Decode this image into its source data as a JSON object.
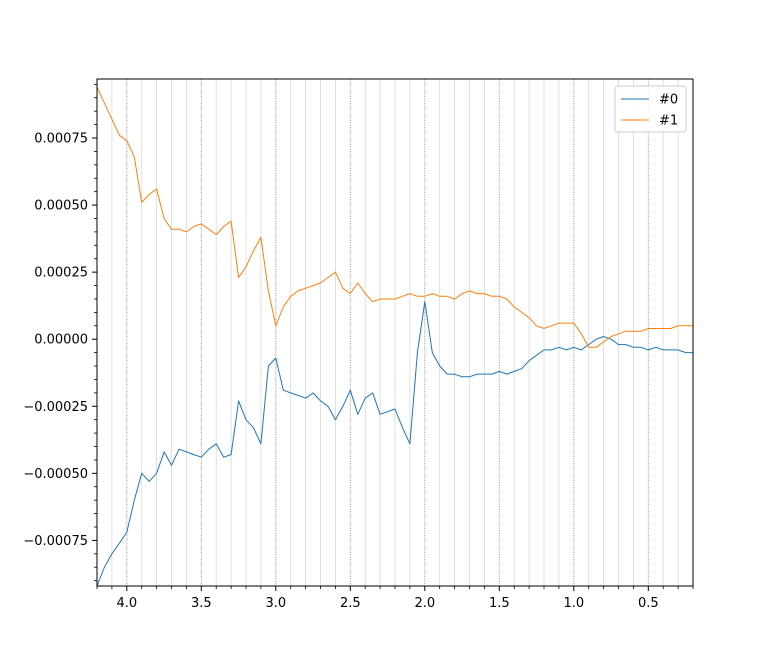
{
  "chart_data": {
    "type": "line",
    "title": "",
    "xlabel": "",
    "ylabel": "",
    "xlim": [
      4.2,
      0.2
    ],
    "x_inverted": true,
    "ylim": [
      -0.00092,
      0.00097
    ],
    "x_ticks": [
      4.0,
      3.5,
      3.0,
      2.5,
      2.0,
      1.5,
      1.0,
      0.5
    ],
    "x_tick_labels": [
      "4.0",
      "3.5",
      "3.0",
      "2.5",
      "2.0",
      "1.5",
      "1.0",
      "0.5"
    ],
    "y_ticks": [
      -0.00075,
      -0.0005,
      -0.00025,
      0.0,
      0.00025,
      0.0005,
      0.00075
    ],
    "y_tick_labels": [
      "−0.00075",
      "−0.00050",
      "−0.00025",
      "0.00000",
      "0.00025",
      "0.00050",
      "0.00075"
    ],
    "vertical_gridlines_major": [
      4.0,
      3.5,
      3.0,
      2.5,
      2.0,
      1.5,
      1.0,
      0.5
    ],
    "vertical_gridlines_minor_step": 0.1,
    "legend": {
      "placement": "top-right",
      "entries": [
        "#0",
        "#1"
      ]
    },
    "series": [
      {
        "name": "#0",
        "color": "#1f77b4",
        "x": [
          4.2,
          4.15,
          4.1,
          4.05,
          4.0,
          3.95,
          3.9,
          3.85,
          3.8,
          3.75,
          3.7,
          3.65,
          3.6,
          3.55,
          3.5,
          3.45,
          3.4,
          3.35,
          3.3,
          3.25,
          3.2,
          3.15,
          3.1,
          3.05,
          3.0,
          2.95,
          2.9,
          2.85,
          2.8,
          2.75,
          2.7,
          2.65,
          2.6,
          2.55,
          2.5,
          2.45,
          2.4,
          2.35,
          2.3,
          2.25,
          2.2,
          2.15,
          2.1,
          2.05,
          2.0,
          1.95,
          1.9,
          1.85,
          1.8,
          1.75,
          1.7,
          1.65,
          1.6,
          1.55,
          1.5,
          1.45,
          1.4,
          1.35,
          1.3,
          1.25,
          1.2,
          1.15,
          1.1,
          1.05,
          1.0,
          0.95,
          0.9,
          0.85,
          0.8,
          0.75,
          0.7,
          0.65,
          0.6,
          0.55,
          0.5,
          0.45,
          0.4,
          0.35,
          0.3,
          0.25,
          0.2
        ],
        "y": [
          -0.00092,
          -0.00085,
          -0.0008,
          -0.00076,
          -0.00072,
          -0.0006,
          -0.0005,
          -0.00053,
          -0.0005,
          -0.00042,
          -0.00047,
          -0.00041,
          -0.00042,
          -0.00043,
          -0.00044,
          -0.00041,
          -0.00039,
          -0.00044,
          -0.00043,
          -0.00023,
          -0.0003,
          -0.00033,
          -0.00039,
          -0.0001,
          -7e-05,
          -0.00019,
          -0.0002,
          -0.00021,
          -0.00022,
          -0.0002,
          -0.00023,
          -0.00025,
          -0.0003,
          -0.00025,
          -0.00019,
          -0.00028,
          -0.00022,
          -0.0002,
          -0.00028,
          -0.00027,
          -0.00026,
          -0.00033,
          -0.00039,
          -5e-05,
          0.00014,
          -5e-05,
          -0.0001,
          -0.00013,
          -0.00013,
          -0.00014,
          -0.00014,
          -0.00013,
          -0.00013,
          -0.00013,
          -0.00012,
          -0.00013,
          -0.00012,
          -0.00011,
          -8e-05,
          -6e-05,
          -4e-05,
          -4e-05,
          -3e-05,
          -4e-05,
          -3e-05,
          -4e-05,
          -2e-05,
          0.0,
          1e-05,
          0.0,
          -2e-05,
          -2e-05,
          -3e-05,
          -3e-05,
          -4e-05,
          -3e-05,
          -4e-05,
          -4e-05,
          -4e-05,
          -5e-05,
          -5e-05
        ]
      },
      {
        "name": "#1",
        "color": "#ff7f0e",
        "x": [
          4.2,
          4.15,
          4.1,
          4.05,
          4.0,
          3.95,
          3.9,
          3.85,
          3.8,
          3.75,
          3.7,
          3.65,
          3.6,
          3.55,
          3.5,
          3.45,
          3.4,
          3.35,
          3.3,
          3.25,
          3.2,
          3.15,
          3.1,
          3.05,
          3.0,
          2.95,
          2.9,
          2.85,
          2.8,
          2.75,
          2.7,
          2.65,
          2.6,
          2.55,
          2.5,
          2.45,
          2.4,
          2.35,
          2.3,
          2.25,
          2.2,
          2.15,
          2.1,
          2.05,
          2.0,
          1.95,
          1.9,
          1.85,
          1.8,
          1.75,
          1.7,
          1.65,
          1.6,
          1.55,
          1.5,
          1.45,
          1.4,
          1.35,
          1.3,
          1.25,
          1.2,
          1.15,
          1.1,
          1.05,
          1.0,
          0.95,
          0.9,
          0.85,
          0.8,
          0.75,
          0.7,
          0.65,
          0.6,
          0.55,
          0.5,
          0.45,
          0.4,
          0.35,
          0.3,
          0.25,
          0.2
        ],
        "y": [
          0.00094,
          0.00088,
          0.00082,
          0.00076,
          0.00074,
          0.00068,
          0.00051,
          0.00054,
          0.00056,
          0.00045,
          0.00041,
          0.00041,
          0.0004,
          0.00042,
          0.00043,
          0.00041,
          0.00039,
          0.00042,
          0.00044,
          0.00023,
          0.00027,
          0.00033,
          0.00038,
          0.00018,
          5e-05,
          0.00012,
          0.00016,
          0.00018,
          0.00019,
          0.0002,
          0.00021,
          0.00023,
          0.00025,
          0.00019,
          0.00017,
          0.00021,
          0.00017,
          0.00014,
          0.00015,
          0.00015,
          0.00015,
          0.00016,
          0.00017,
          0.00016,
          0.00016,
          0.00017,
          0.00016,
          0.00016,
          0.00015,
          0.00017,
          0.00018,
          0.00017,
          0.00017,
          0.00016,
          0.00016,
          0.00015,
          0.00012,
          0.0001,
          8e-05,
          5e-05,
          4e-05,
          5e-05,
          6e-05,
          6e-05,
          6e-05,
          2e-05,
          -3e-05,
          -3e-05,
          -1e-05,
          1e-05,
          2e-05,
          3e-05,
          3e-05,
          3e-05,
          4e-05,
          4e-05,
          4e-05,
          4e-05,
          5e-05,
          5e-05,
          5e-05
        ]
      }
    ]
  }
}
